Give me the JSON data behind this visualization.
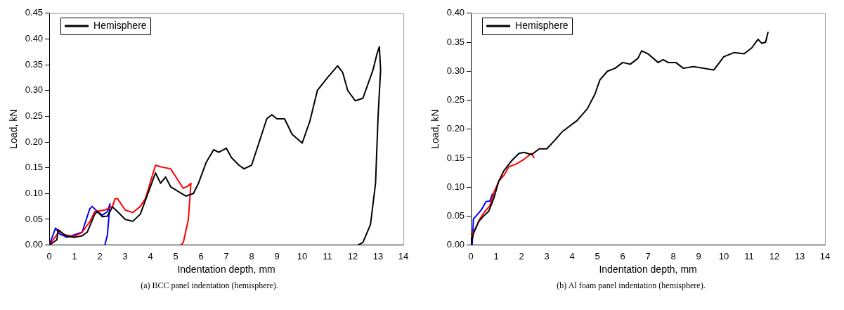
{
  "chart_data": [
    {
      "type": "line",
      "xlabel": "Indentation depth, mm",
      "ylabel": "Load, kN",
      "annotations": [
        "(a) BCC panel indentation (hemisphere)."
      ],
      "xlim": [
        0,
        14
      ],
      "xticks": [
        0,
        1,
        2,
        3,
        4,
        5,
        6,
        7,
        8,
        9,
        10,
        11,
        12,
        13,
        14
      ],
      "ylim": [
        0,
        0.45
      ],
      "yticks": [
        {
          "value": 0,
          "label": "0.00"
        },
        {
          "value": 0.05,
          "label": "0.05"
        },
        {
          "value": 0.1,
          "label": "0.10"
        },
        {
          "value": 0.15,
          "label": "0.15"
        },
        {
          "value": 0.2,
          "label": "0.20"
        },
        {
          "value": 0.25,
          "label": "0.25"
        },
        {
          "value": 0.3,
          "label": "0.30"
        },
        {
          "value": 0.35,
          "label": "0.35"
        },
        {
          "value": 0.4,
          "label": "0.40"
        },
        {
          "value": 0.45,
          "label": "0.45"
        }
      ],
      "grid": false,
      "legend": "top left",
      "marker": "none",
      "line_style": "solid",
      "series": [
        {
          "name": "Hemisphere",
          "color": "#000000",
          "x": [
            0,
            0.3,
            0.35,
            0.45,
            0.7,
            1,
            1.3,
            1.5,
            1.8,
            1.9,
            2.1,
            2.3,
            2.5,
            2.7,
            3,
            3.3,
            3.6,
            3.9,
            4.2,
            4.4,
            4.6,
            4.8,
            5,
            5.4,
            5.7,
            5.9,
            6.2,
            6.5,
            6.7,
            7,
            7.2,
            7.5,
            7.7,
            8,
            8.3,
            8.6,
            8.8,
            9,
            9.3,
            9.6,
            10,
            10.3,
            10.6,
            11,
            11.4,
            11.6,
            11.8,
            12.1,
            12.4,
            12.8,
            12.95,
            13.05,
            13.1,
            13,
            12.9,
            12.7,
            12.4,
            12.2
          ],
          "values": [
            0,
            0.01,
            0.03,
            0.025,
            0.017,
            0.015,
            0.018,
            0.025,
            0.06,
            0.065,
            0.055,
            0.056,
            0.074,
            0.065,
            0.05,
            0.046,
            0.06,
            0.1,
            0.14,
            0.12,
            0.132,
            0.113,
            0.107,
            0.095,
            0.1,
            0.12,
            0.16,
            0.185,
            0.18,
            0.188,
            0.17,
            0.155,
            0.148,
            0.155,
            0.2,
            0.245,
            0.253,
            0.245,
            0.245,
            0.215,
            0.198,
            0.24,
            0.3,
            0.325,
            0.348,
            0.335,
            0.3,
            0.28,
            0.285,
            0.34,
            0.37,
            0.385,
            0.34,
            0.25,
            0.12,
            0.04,
            0.005,
            0
          ]
        },
        {
          "color": "#ff0000",
          "x": [
            0,
            0.3,
            0.4,
            0.6,
            1,
            1.3,
            1.6,
            1.8,
            2.2,
            2.5,
            2.6,
            2.7,
            3,
            3.3,
            3.6,
            3.8,
            4.2,
            4.4,
            4.8,
            5.1,
            5.3,
            5.5,
            5.6,
            5.5,
            5.3,
            5.2
          ],
          "values": [
            0,
            0.02,
            0.028,
            0.02,
            0.017,
            0.025,
            0.045,
            0.065,
            0.068,
            0.075,
            0.09,
            0.09,
            0.068,
            0.063,
            0.075,
            0.09,
            0.155,
            0.152,
            0.148,
            0.125,
            0.11,
            0.115,
            0.12,
            0.05,
            0.005,
            0
          ]
        },
        {
          "color": "#0000ff",
          "x": [
            0,
            0.25,
            0.4,
            0.7,
            1.3,
            1.6,
            1.7,
            1.9,
            2.1,
            2.3,
            2.4,
            2.35,
            2.3,
            2.2
          ],
          "values": [
            0,
            0.033,
            0.022,
            0.015,
            0.025,
            0.07,
            0.075,
            0.065,
            0.058,
            0.065,
            0.08,
            0.05,
            0.02,
            0
          ]
        }
      ]
    },
    {
      "type": "line",
      "xlabel": "Indentation depth, mm",
      "ylabel": "Load, kN",
      "annotations": [
        "(b) Al foam panel indentation (hemisphere)."
      ],
      "xlim": [
        0,
        14
      ],
      "xticks": [
        0,
        1,
        2,
        3,
        4,
        5,
        6,
        7,
        8,
        9,
        10,
        11,
        12,
        13,
        14
      ],
      "ylim": [
        0,
        0.4
      ],
      "yticks": [
        {
          "value": 0,
          "label": "0.00"
        },
        {
          "value": 0.05,
          "label": "0.05"
        },
        {
          "value": 0.1,
          "label": "0.10"
        },
        {
          "value": 0.15,
          "label": "0.15"
        },
        {
          "value": 0.2,
          "label": "0.20"
        },
        {
          "value": 0.25,
          "label": "0.25"
        },
        {
          "value": 0.3,
          "label": "0.30"
        },
        {
          "value": 0.35,
          "label": "0.35"
        },
        {
          "value": 0.4,
          "label": "0.40"
        }
      ],
      "grid": false,
      "legend": "top left",
      "marker": "none",
      "line_style": "solid",
      "series": [
        {
          "name": "Hemisphere",
          "color": "#000000",
          "x": [
            0,
            0.1,
            0.3,
            0.5,
            0.7,
            0.9,
            1.1,
            1.3,
            1.6,
            1.9,
            2.1,
            2.4,
            2.7,
            3,
            3.3,
            3.6,
            3.9,
            4.2,
            4.6,
            4.9,
            5.1,
            5.4,
            5.7,
            6,
            6.3,
            6.6,
            6.75,
            7,
            7.4,
            7.6,
            7.8,
            8.1,
            8.4,
            8.8,
            9.2,
            9.6,
            10,
            10.4,
            10.8,
            11.1,
            11.35,
            11.5,
            11.65,
            11.75
          ],
          "values": [
            0,
            0.02,
            0.04,
            0.05,
            0.058,
            0.08,
            0.11,
            0.128,
            0.145,
            0.158,
            0.16,
            0.156,
            0.166,
            0.166,
            0.18,
            0.195,
            0.205,
            0.215,
            0.235,
            0.26,
            0.285,
            0.3,
            0.305,
            0.315,
            0.312,
            0.322,
            0.335,
            0.33,
            0.315,
            0.32,
            0.315,
            0.315,
            0.305,
            0.308,
            0.305,
            0.302,
            0.325,
            0.332,
            0.33,
            0.34,
            0.355,
            0.348,
            0.35,
            0.368
          ]
        },
        {
          "color": "#ff0000",
          "x": [
            0,
            0.2,
            0.35,
            0.5,
            0.75,
            0.9,
            1.1,
            1.3,
            1.5,
            1.8,
            2.1,
            2.4,
            2.5
          ],
          "values": [
            0.015,
            0.03,
            0.045,
            0.055,
            0.068,
            0.09,
            0.11,
            0.12,
            0.135,
            0.14,
            0.148,
            0.158,
            0.15
          ]
        },
        {
          "color": "#0000ff",
          "x": [
            0.05,
            0.1,
            0.2,
            0.4,
            0.6,
            0.75,
            0.85,
            0.95
          ],
          "values": [
            0,
            0.045,
            0.05,
            0.06,
            0.075,
            0.076,
            0.088,
            0.085
          ]
        }
      ]
    }
  ]
}
